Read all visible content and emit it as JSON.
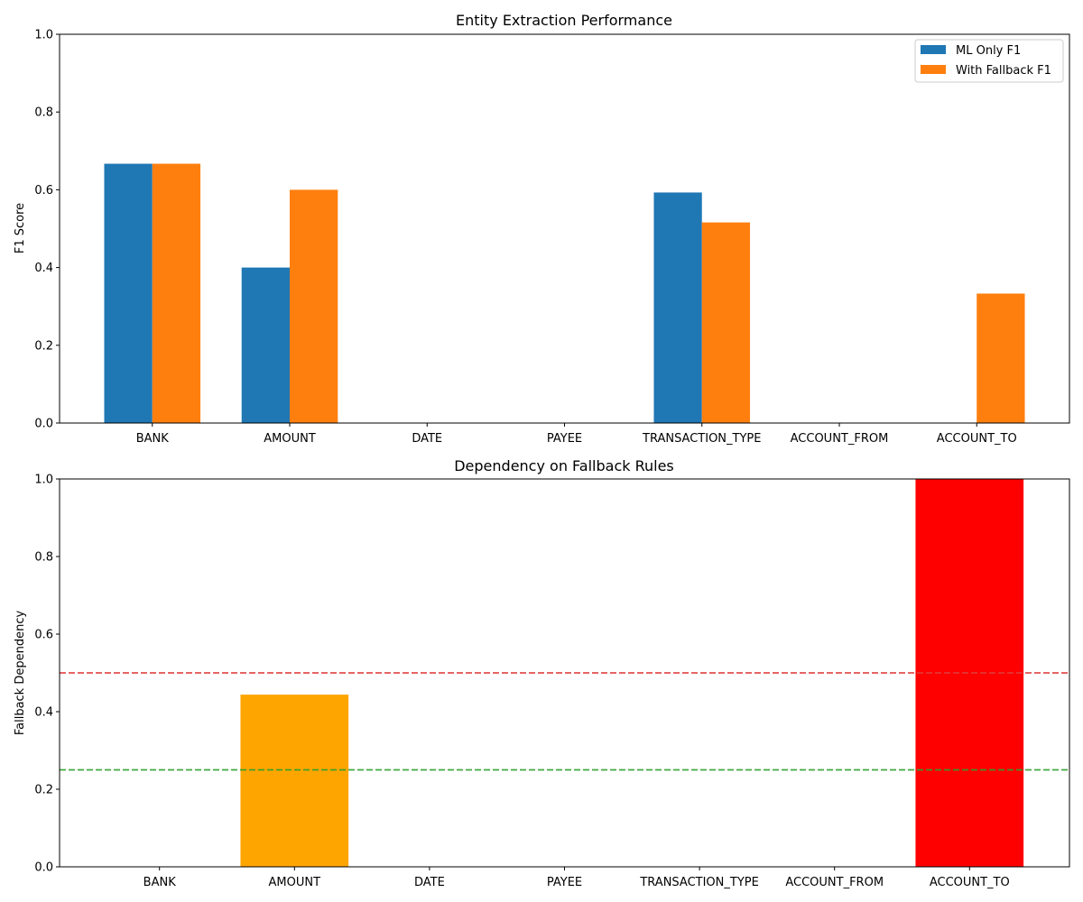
{
  "chart_data": [
    {
      "type": "bar",
      "title": "Entity Extraction Performance",
      "xlabel": "",
      "ylabel": "F1 Score",
      "ylim": [
        0,
        1.0
      ],
      "yticks": [
        "0.0",
        "0.2",
        "0.4",
        "0.6",
        "0.8",
        "1.0"
      ],
      "categories": [
        "BANK",
        "AMOUNT",
        "DATE",
        "PAYEE",
        "TRANSACTION_TYPE",
        "ACCOUNT_FROM",
        "ACCOUNT_TO"
      ],
      "series": [
        {
          "name": "ML Only F1",
          "color": "#1f77b4",
          "values": [
            0.667,
            0.4,
            0,
            0,
            0.593,
            0,
            0
          ]
        },
        {
          "name": "With Fallback F1",
          "color": "#ff7f0e",
          "values": [
            0.667,
            0.6,
            0,
            0,
            0.516,
            0,
            0.333
          ]
        }
      ],
      "legend": "top-right",
      "grid": false
    },
    {
      "type": "bar",
      "title": "Dependency on Fallback Rules",
      "xlabel": "",
      "ylabel": "Fallback Dependency",
      "ylim": [
        0,
        1.0
      ],
      "yticks": [
        "0.0",
        "0.2",
        "0.4",
        "0.6",
        "0.8",
        "1.0"
      ],
      "categories": [
        "BANK",
        "AMOUNT",
        "DATE",
        "PAYEE",
        "TRANSACTION_TYPE",
        "ACCOUNT_FROM",
        "ACCOUNT_TO"
      ],
      "values": [
        0,
        0.444,
        0,
        0,
        0,
        0,
        1.0
      ],
      "bar_colors": [
        "#008000",
        "#ffa500",
        "#008000",
        "#008000",
        "#008000",
        "#008000",
        "#ff0000"
      ],
      "reference_lines": [
        {
          "value": 0.5,
          "color": "#e03c3c",
          "style": "dashed"
        },
        {
          "value": 0.25,
          "color": "#2ca02c",
          "style": "dashed"
        }
      ],
      "grid": false
    }
  ]
}
